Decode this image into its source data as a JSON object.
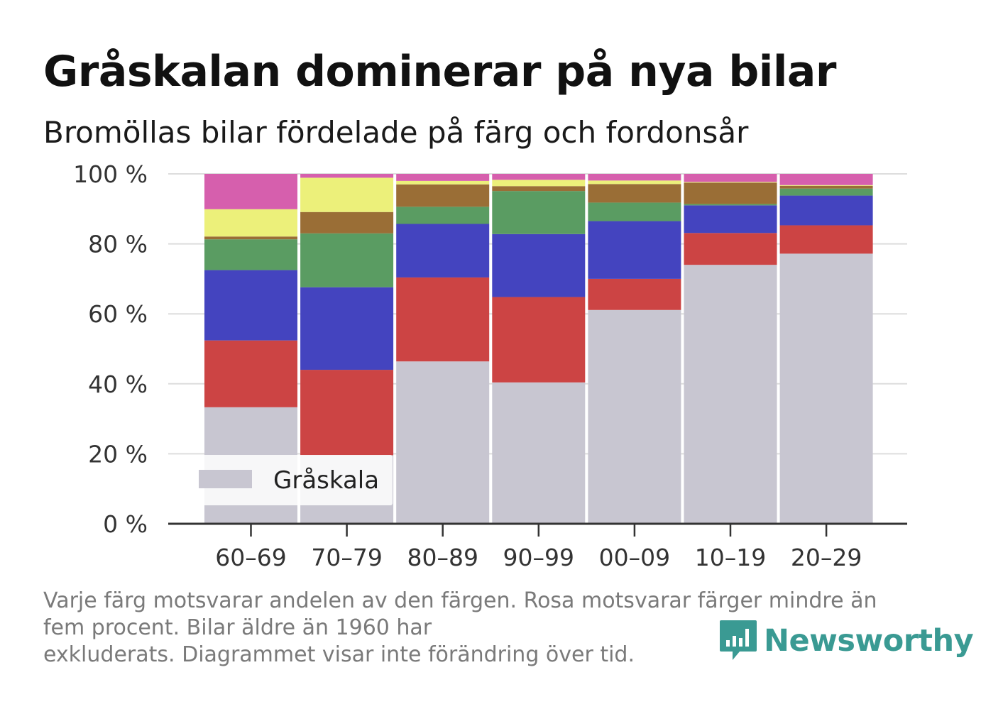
{
  "header": {
    "title": "Gråskalan dominerar på nya bilar",
    "subtitle": "Bromöllas bilar fördelade på färg och fordonsår"
  },
  "footnote": {
    "line1": "Varje färg motsvarar andelen av den färgen. Rosa motsvarar färger mindre än",
    "line2": "fem procent. Bilar äldre än 1960 har",
    "line3": "exkluderats. Diagrammet visar inte förändring över tid."
  },
  "brand": {
    "name": "Newsworthy",
    "icon": "newsworthy-logo-icon",
    "color": "#3a9a93"
  },
  "chart_data": {
    "type": "bar",
    "stacked": true,
    "categories": [
      "60–69",
      "70–79",
      "80–89",
      "90–99",
      "00–09",
      "10–19",
      "20–29"
    ],
    "ylim": [
      0,
      100
    ],
    "yticks": [
      0,
      20,
      40,
      60,
      80,
      100
    ],
    "ytick_labels": [
      "0 %",
      "20 %",
      "40 %",
      "60 %",
      "80 %",
      "100 %"
    ],
    "grid": true,
    "legend": {
      "placement": "bottom-left",
      "entries": [
        "Gråskala"
      ]
    },
    "series": [
      {
        "name": "Gråskala",
        "color": "#c8c6d1",
        "values": [
          33.3,
          19.6,
          46.4,
          40.4,
          61.1,
          74.0,
          77.2
        ]
      },
      {
        "color": "#cc4444",
        "values": [
          19.1,
          24.4,
          24.0,
          24.4,
          8.9,
          9.1,
          8.1
        ]
      },
      {
        "color": "#4444bf",
        "values": [
          20.1,
          23.6,
          15.3,
          18.0,
          16.5,
          7.9,
          8.5
        ]
      },
      {
        "color": "#5a9c62",
        "values": [
          8.8,
          15.4,
          4.9,
          12.3,
          5.3,
          0.4,
          2.0
        ]
      },
      {
        "color": "#9a6e36",
        "values": [
          0.8,
          6.1,
          6.4,
          1.4,
          5.3,
          6.1,
          0.8
        ]
      },
      {
        "color": "#ecf07a",
        "values": [
          7.8,
          9.8,
          1.0,
          1.8,
          1.0,
          0.2,
          0.2
        ]
      },
      {
        "color": "#d65fad",
        "values": [
          10.1,
          1.1,
          2.0,
          1.7,
          1.9,
          2.3,
          3.2
        ]
      }
    ]
  }
}
